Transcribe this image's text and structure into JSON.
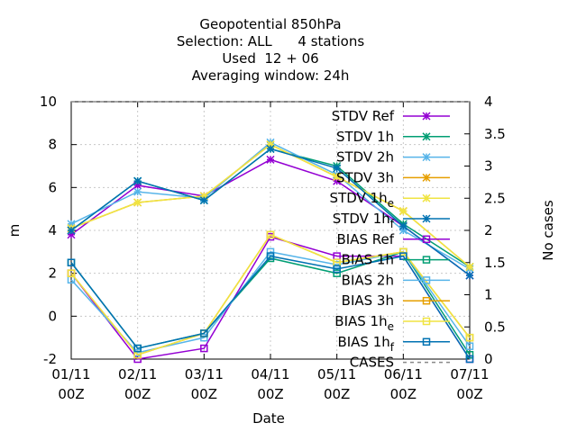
{
  "chart_data": {
    "type": "line",
    "title_lines": [
      "Geopotential 850hPa",
      "Selection: ALL      4 stations",
      "Used  12 + 06",
      "Averaging window: 24h"
    ],
    "xlabel": "Date",
    "ylabel": "m",
    "y2label": "No cases",
    "x_ticks": [
      {
        "line1": "01/11",
        "line2": "00Z"
      },
      {
        "line1": "02/11",
        "line2": "00Z"
      },
      {
        "line1": "03/11",
        "line2": "00Z"
      },
      {
        "line1": "04/11",
        "line2": "00Z"
      },
      {
        "line1": "05/11",
        "line2": "00Z"
      },
      {
        "line1": "06/11",
        "line2": "00Z"
      },
      {
        "line1": "07/11",
        "line2": "00Z"
      }
    ],
    "x": [
      0,
      1,
      2,
      3,
      4,
      5,
      6
    ],
    "ylim": [
      -2,
      10
    ],
    "y_ticks": [
      "-2",
      "0",
      "2",
      "4",
      "6",
      "8",
      "10"
    ],
    "y_tick_values": [
      -2,
      0,
      2,
      4,
      6,
      8,
      10
    ],
    "y2lim": [
      0,
      4
    ],
    "y2_ticks": [
      "0",
      "0.5",
      "1",
      "1.5",
      "2",
      "2.5",
      "3",
      "3.5",
      "4"
    ],
    "y2_tick_values": [
      0,
      0.5,
      1,
      1.5,
      2,
      2.5,
      3,
      3.5,
      4
    ],
    "grid": true,
    "legend_position": "top-right",
    "series": [
      {
        "name": "STDV Ref",
        "sub": "",
        "color": "#9400d3",
        "marker": "star",
        "values": [
          3.8,
          6.1,
          5.6,
          7.3,
          6.3,
          4.2,
          1.9
        ]
      },
      {
        "name": "STDV 1h",
        "sub": "",
        "color": "#009e73",
        "marker": "star",
        "values": [
          4.0,
          6.3,
          5.4,
          7.8,
          7.0,
          4.3,
          2.3
        ]
      },
      {
        "name": "STDV 2h",
        "sub": "",
        "color": "#56b4e9",
        "marker": "star",
        "values": [
          4.3,
          5.8,
          5.5,
          8.1,
          6.6,
          4.0,
          2.2
        ]
      },
      {
        "name": "STDV 3h",
        "sub": "",
        "color": "#e69f00",
        "marker": "star",
        "values": [
          4.1,
          5.3,
          5.6,
          8.0,
          6.5,
          4.9,
          2.3
        ]
      },
      {
        "name": "STDV 1h",
        "sub": "e",
        "color": "#f0e442",
        "marker": "star",
        "values": [
          4.1,
          5.3,
          5.6,
          8.0,
          6.5,
          4.9,
          2.3
        ]
      },
      {
        "name": "STDV 1h",
        "sub": "f",
        "color": "#0072b2",
        "marker": "star",
        "values": [
          4.0,
          6.3,
          5.4,
          7.8,
          6.9,
          4.2,
          1.9
        ]
      },
      {
        "name": "BIAS Ref",
        "sub": "",
        "color": "#9400d3",
        "marker": "square",
        "values": [
          2.0,
          -2.0,
          -1.5,
          3.7,
          2.8,
          2.8,
          -2.0
        ]
      },
      {
        "name": "BIAS 1h",
        "sub": "",
        "color": "#009e73",
        "marker": "square",
        "values": [
          2.5,
          -1.5,
          -0.8,
          2.7,
          2.0,
          3.0,
          -1.8
        ]
      },
      {
        "name": "BIAS 2h",
        "sub": "",
        "color": "#56b4e9",
        "marker": "square",
        "values": [
          1.7,
          -1.7,
          -1.0,
          3.0,
          2.4,
          3.0,
          -1.4
        ]
      },
      {
        "name": "BIAS 3h",
        "sub": "",
        "color": "#e69f00",
        "marker": "square",
        "values": [
          2.0,
          -1.8,
          -0.8,
          3.8,
          2.5,
          3.0,
          -1.0
        ]
      },
      {
        "name": "BIAS 1h",
        "sub": "e",
        "color": "#f0e442",
        "marker": "square",
        "values": [
          2.0,
          -1.8,
          -0.8,
          3.8,
          2.5,
          3.0,
          -1.0
        ]
      },
      {
        "name": "BIAS 1h",
        "sub": "f",
        "color": "#0072b2",
        "marker": "square",
        "values": [
          2.5,
          -1.5,
          -0.8,
          2.8,
          2.2,
          2.8,
          -2.0
        ]
      }
    ],
    "cases_series": {
      "name": "CASES",
      "color": "#888888",
      "dash": true,
      "values": [
        4,
        4,
        4,
        4,
        4,
        4,
        4
      ]
    }
  }
}
